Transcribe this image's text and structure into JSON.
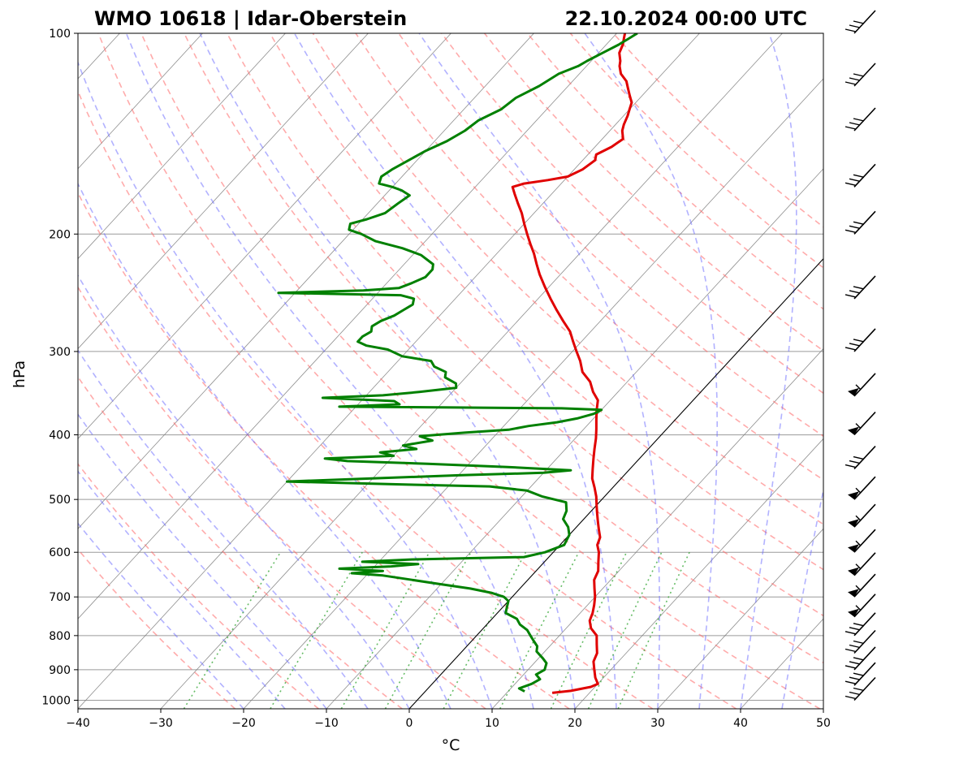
{
  "chart_data": {
    "type": "line",
    "subtype": "skew-t log-p sounding",
    "title_left": "WMO 10618 | Idar-Oberstein",
    "title_right": "22.10.2024 00:00 UTC",
    "xlabel": "°C",
    "ylabel": "hPa",
    "xlim": [
      -40,
      50
    ],
    "ylim": [
      1030,
      100
    ],
    "x_ticks": [
      -40,
      -30,
      -20,
      -10,
      0,
      10,
      20,
      30,
      40,
      50
    ],
    "x_tick_labels": [
      "−40",
      "−30",
      "−20",
      "−10",
      "0",
      "10",
      "20",
      "30",
      "40",
      "50"
    ],
    "y_ticks": [
      1000,
      900,
      800,
      700,
      600,
      500,
      400,
      300,
      200,
      100
    ],
    "y_tick_labels": [
      "1000",
      "900",
      "800",
      "700",
      "600",
      "500",
      "400",
      "300",
      "200",
      "100"
    ],
    "grid_pressures": [
      1000,
      900,
      800,
      700,
      600,
      500,
      400,
      300,
      200
    ],
    "series": [
      {
        "name": "Temperature",
        "color": "#e00000",
        "points": [
          [
            15.5,
            975
          ],
          [
            17.5,
            968
          ],
          [
            19.5,
            955
          ],
          [
            20.0,
            945
          ],
          [
            19.0,
            925
          ],
          [
            18.0,
            900
          ],
          [
            17.0,
            875
          ],
          [
            16.5,
            850
          ],
          [
            15.5,
            825
          ],
          [
            14.5,
            800
          ],
          [
            13.0,
            780
          ],
          [
            12.0,
            760
          ],
          [
            11.5,
            740
          ],
          [
            10.8,
            720
          ],
          [
            10.0,
            700
          ],
          [
            9.0,
            680
          ],
          [
            8.0,
            660
          ],
          [
            7.5,
            640
          ],
          [
            6.5,
            620
          ],
          [
            5.5,
            600
          ],
          [
            4.5,
            585
          ],
          [
            4.0,
            570
          ],
          [
            3.0,
            555
          ],
          [
            2.0,
            540
          ],
          [
            1.0,
            525
          ],
          [
            0.0,
            510
          ],
          [
            -1.0,
            495
          ],
          [
            -2.2,
            480
          ],
          [
            -3.5,
            465
          ],
          [
            -4.5,
            450
          ],
          [
            -5.5,
            435
          ],
          [
            -6.5,
            420
          ],
          [
            -7.5,
            405
          ],
          [
            -8.5,
            392
          ],
          [
            -9.5,
            380
          ],
          [
            -10.5,
            368
          ],
          [
            -11.5,
            355
          ],
          [
            -13.0,
            345
          ],
          [
            -14.5,
            333
          ],
          [
            -16.5,
            322
          ],
          [
            -18.0,
            310
          ],
          [
            -19.5,
            300
          ],
          [
            -21.0,
            290
          ],
          [
            -22.5,
            280
          ],
          [
            -24.5,
            270
          ],
          [
            -26.5,
            260
          ],
          [
            -28.5,
            250
          ],
          [
            -30.5,
            240
          ],
          [
            -32.5,
            230
          ],
          [
            -34.0,
            222
          ],
          [
            -35.5,
            214
          ],
          [
            -37.0,
            207
          ],
          [
            -38.5,
            200
          ],
          [
            -40.0,
            193
          ],
          [
            -41.5,
            186
          ],
          [
            -43.0,
            180
          ],
          [
            -44.5,
            174
          ],
          [
            -45.5,
            170
          ],
          [
            -44.5,
            168
          ],
          [
            -42.0,
            166
          ],
          [
            -40.0,
            164
          ],
          [
            -39.0,
            160
          ],
          [
            -38.5,
            155
          ],
          [
            -39.0,
            152
          ],
          [
            -38.0,
            148
          ],
          [
            -37.5,
            144
          ],
          [
            -38.5,
            140
          ],
          [
            -39.0,
            137
          ],
          [
            -39.5,
            133
          ],
          [
            -40.0,
            130
          ],
          [
            -40.5,
            127
          ],
          [
            -41.5,
            124
          ],
          [
            -42.5,
            121
          ],
          [
            -43.5,
            118
          ],
          [
            -45.0,
            115
          ],
          [
            -46.0,
            112
          ],
          [
            -46.5,
            110
          ],
          [
            -47.5,
            107
          ],
          [
            -48.0,
            104
          ],
          [
            -48.5,
            102
          ],
          [
            -49.0,
            100
          ]
        ]
      },
      {
        "name": "Dewpoint",
        "color": "#008000",
        "points": [
          [
            12.0,
            970
          ],
          [
            11.0,
            960
          ],
          [
            12.0,
            945
          ],
          [
            12.5,
            930
          ],
          [
            11.5,
            915
          ],
          [
            12.0,
            900
          ],
          [
            11.5,
            880
          ],
          [
            10.5,
            865
          ],
          [
            9.0,
            845
          ],
          [
            8.5,
            830
          ],
          [
            7.5,
            815
          ],
          [
            6.5,
            800
          ],
          [
            5.5,
            785
          ],
          [
            4.0,
            770
          ],
          [
            3.0,
            755
          ],
          [
            1.0,
            740
          ],
          [
            0.5,
            725
          ],
          [
            0.0,
            710
          ],
          [
            -1.0,
            700
          ],
          [
            -3.0,
            690
          ],
          [
            -6.0,
            680
          ],
          [
            -10.0,
            670
          ],
          [
            -14.0,
            660
          ],
          [
            -18.0,
            650
          ],
          [
            -22.0,
            645
          ],
          [
            -18.5,
            640
          ],
          [
            -24.0,
            635
          ],
          [
            -18.0,
            630
          ],
          [
            -15.0,
            625
          ],
          [
            -22.0,
            620
          ],
          [
            -16.0,
            615
          ],
          [
            -3.0,
            610
          ],
          [
            -1.0,
            600
          ],
          [
            0.5,
            585
          ],
          [
            0.0,
            565
          ],
          [
            -1.0,
            550
          ],
          [
            -2.5,
            535
          ],
          [
            -3.0,
            520
          ],
          [
            -4.0,
            505
          ],
          [
            -7.5,
            495
          ],
          [
            -10.0,
            485
          ],
          [
            -15.0,
            478
          ],
          [
            -25.0,
            475
          ],
          [
            -40.0,
            470
          ],
          [
            -32.0,
            466
          ],
          [
            -20.0,
            460
          ],
          [
            -10.0,
            456
          ],
          [
            -7.0,
            452
          ],
          [
            -15.0,
            447
          ],
          [
            -25.0,
            442
          ],
          [
            -35.0,
            438
          ],
          [
            -38.0,
            434
          ],
          [
            -30.0,
            430
          ],
          [
            -32.0,
            425
          ],
          [
            -28.0,
            420
          ],
          [
            -30.0,
            415
          ],
          [
            -27.0,
            408
          ],
          [
            -29.0,
            402
          ],
          [
            -24.0,
            397
          ],
          [
            -19.0,
            393
          ],
          [
            -17.0,
            388
          ],
          [
            -14.0,
            383
          ],
          [
            -12.0,
            378
          ],
          [
            -10.5,
            372
          ],
          [
            -10.0,
            367
          ],
          [
            -15.0,
            365
          ],
          [
            -28.0,
            364
          ],
          [
            -42.0,
            363
          ],
          [
            -35.0,
            360
          ],
          [
            -36.0,
            356
          ],
          [
            -45.0,
            352
          ],
          [
            -38.0,
            349
          ],
          [
            -34.0,
            345
          ],
          [
            -30.0,
            340
          ],
          [
            -30.5,
            335
          ],
          [
            -32.5,
            328
          ],
          [
            -33.0,
            322
          ],
          [
            -35.0,
            316
          ],
          [
            -36.0,
            310
          ],
          [
            -40.0,
            305
          ],
          [
            -42.5,
            298
          ],
          [
            -45.5,
            294
          ],
          [
            -47.0,
            290
          ],
          [
            -47.0,
            285
          ],
          [
            -46.5,
            280
          ],
          [
            -47.0,
            275
          ],
          [
            -46.5,
            270
          ],
          [
            -45.5,
            265
          ],
          [
            -45.0,
            260
          ],
          [
            -44.5,
            255
          ],
          [
            -45.0,
            250
          ],
          [
            -47.0,
            247
          ],
          [
            -62.0,
            245
          ],
          [
            -52.0,
            243
          ],
          [
            -48.0,
            241
          ],
          [
            -47.0,
            237
          ],
          [
            -46.0,
            232
          ],
          [
            -46.0,
            226
          ],
          [
            -46.5,
            222
          ],
          [
            -49.0,
            215
          ],
          [
            -52.0,
            210
          ],
          [
            -56.0,
            205
          ],
          [
            -58.5,
            200
          ],
          [
            -60.5,
            197
          ],
          [
            -61.0,
            193
          ],
          [
            -59.5,
            190
          ],
          [
            -58.0,
            186
          ],
          [
            -57.5,
            180
          ],
          [
            -57.0,
            175
          ],
          [
            -58.5,
            172
          ],
          [
            -60.0,
            170
          ],
          [
            -62.0,
            168
          ],
          [
            -62.5,
            164
          ],
          [
            -62.0,
            160
          ],
          [
            -61.0,
            155
          ],
          [
            -60.0,
            150
          ],
          [
            -58.5,
            145
          ],
          [
            -57.5,
            140
          ],
          [
            -57.0,
            135
          ],
          [
            -55.5,
            130
          ],
          [
            -55.0,
            125
          ],
          [
            -53.5,
            120
          ],
          [
            -52.5,
            115
          ],
          [
            -51.0,
            112
          ],
          [
            -50.5,
            110
          ],
          [
            -49.5,
            107
          ],
          [
            -48.5,
            104
          ],
          [
            -48.0,
            102
          ],
          [
            -47.5,
            100
          ]
        ]
      }
    ],
    "reference_lines": {
      "dry_adiabats_theta_K": [
        250,
        260,
        270,
        280,
        290,
        300,
        310,
        320,
        330,
        340,
        350,
        360,
        370,
        380,
        390,
        400,
        410,
        420,
        430
      ],
      "moist_adiabats_start_C": [
        -20,
        -15,
        -10,
        -5,
        0,
        5,
        10,
        15,
        20,
        25,
        30,
        35,
        40,
        45
      ],
      "mixing_ratio_g_per_kg": [
        0.4,
        1,
        2,
        3,
        5,
        8,
        12,
        16,
        20
      ],
      "zero_isotherm_C": 0,
      "isotherm_spacing_C": 10
    },
    "wind_barbs_pressure_hPa": [
      1000,
      950,
      900,
      850,
      800,
      750,
      700,
      650,
      600,
      550,
      500,
      450,
      400,
      350,
      300,
      250,
      200,
      170,
      140,
      120,
      100
    ]
  },
  "colors": {
    "temperature": "#e00000",
    "dewpoint": "#008000",
    "dry_adiabat": "#ff6666",
    "moist_adiabat": "#6666ff",
    "mixing_ratio": "#33a633",
    "isotherm": "#000000",
    "grid": "#9a9a9a"
  }
}
